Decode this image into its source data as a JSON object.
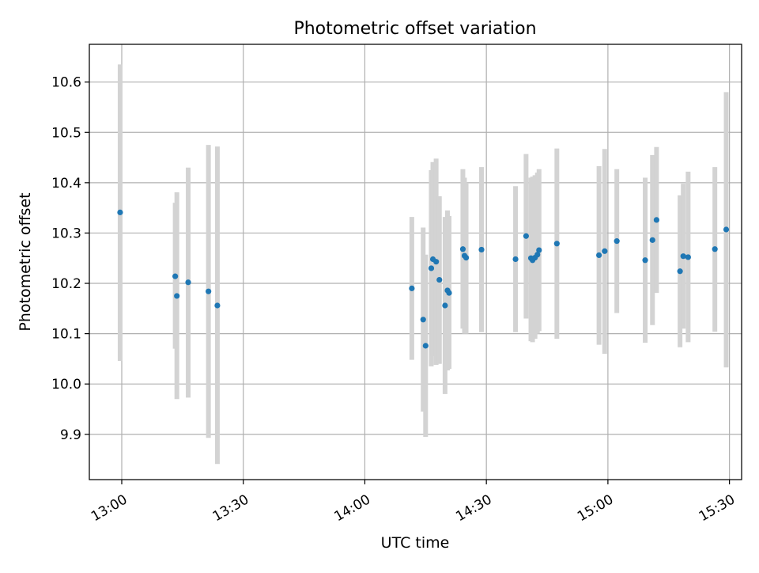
{
  "chart_data": {
    "type": "scatter",
    "title": "Photometric offset variation",
    "xlabel": "UTC time",
    "ylabel": "Photometric offset",
    "x_format": "HH:MM",
    "xlim": [
      "12:52",
      "15:33"
    ],
    "ylim": [
      9.81,
      10.675
    ],
    "x_ticks": [
      "13:00",
      "13:30",
      "14:00",
      "14:30",
      "15:00",
      "15:30"
    ],
    "y_ticks": [
      9.9,
      10.0,
      10.1,
      10.2,
      10.3,
      10.4,
      10.5,
      10.6
    ],
    "y_tick_labels": [
      "9.9",
      "10.0",
      "10.1",
      "10.2",
      "10.3",
      "10.4",
      "10.5",
      "10.6"
    ],
    "grid": true,
    "legend": "none",
    "colors": {
      "marker": "#1f77b4",
      "errorbar": "#d3d3d3",
      "grid": "#b0b0b0",
      "axes": "#000000"
    },
    "points": [
      {
        "x": "12:59:36",
        "y": 10.341,
        "ylo": 10.046,
        "yhi": 10.635
      },
      {
        "x": "13:13:12",
        "y": 10.214,
        "ylo": 10.07,
        "yhi": 10.36
      },
      {
        "x": "13:13:36",
        "y": 10.175,
        "ylo": 9.97,
        "yhi": 10.381
      },
      {
        "x": "13:16:24",
        "y": 10.202,
        "ylo": 9.973,
        "yhi": 10.43
      },
      {
        "x": "13:21:24",
        "y": 10.184,
        "ylo": 9.893,
        "yhi": 10.475
      },
      {
        "x": "13:23:36",
        "y": 10.156,
        "ylo": 9.841,
        "yhi": 10.472
      },
      {
        "x": "14:11:36",
        "y": 10.19,
        "ylo": 10.048,
        "yhi": 10.332
      },
      {
        "x": "14:14:24",
        "y": 10.128,
        "ylo": 9.945,
        "yhi": 10.311
      },
      {
        "x": "14:15:00",
        "y": 10.076,
        "ylo": 9.895,
        "yhi": 10.257
      },
      {
        "x": "14:16:24",
        "y": 10.23,
        "ylo": 10.035,
        "yhi": 10.425
      },
      {
        "x": "14:16:48",
        "y": 10.248,
        "ylo": 10.055,
        "yhi": 10.441
      },
      {
        "x": "14:17:36",
        "y": 10.243,
        "ylo": 10.038,
        "yhi": 10.448
      },
      {
        "x": "14:18:24",
        "y": 10.207,
        "ylo": 10.04,
        "yhi": 10.373
      },
      {
        "x": "14:19:48",
        "y": 10.156,
        "ylo": 9.98,
        "yhi": 10.332
      },
      {
        "x": "14:20:24",
        "y": 10.186,
        "ylo": 10.027,
        "yhi": 10.345
      },
      {
        "x": "14:20:48",
        "y": 10.181,
        "ylo": 10.03,
        "yhi": 10.334
      },
      {
        "x": "14:24:12",
        "y": 10.268,
        "ylo": 10.11,
        "yhi": 10.427
      },
      {
        "x": "14:24:36",
        "y": 10.255,
        "ylo": 10.1,
        "yhi": 10.41
      },
      {
        "x": "14:25:00",
        "y": 10.251,
        "ylo": 10.1,
        "yhi": 10.4
      },
      {
        "x": "14:28:48",
        "y": 10.267,
        "ylo": 10.103,
        "yhi": 10.431
      },
      {
        "x": "14:37:12",
        "y": 10.248,
        "ylo": 10.103,
        "yhi": 10.393
      },
      {
        "x": "14:39:48",
        "y": 10.294,
        "ylo": 10.13,
        "yhi": 10.457
      },
      {
        "x": "14:41:00",
        "y": 10.25,
        "ylo": 10.085,
        "yhi": 10.41
      },
      {
        "x": "14:41:24",
        "y": 10.246,
        "ylo": 10.083,
        "yhi": 10.412
      },
      {
        "x": "14:42:00",
        "y": 10.251,
        "ylo": 10.09,
        "yhi": 10.415
      },
      {
        "x": "14:42:36",
        "y": 10.257,
        "ylo": 10.1,
        "yhi": 10.42
      },
      {
        "x": "14:43:00",
        "y": 10.266,
        "ylo": 10.105,
        "yhi": 10.427
      },
      {
        "x": "14:47:24",
        "y": 10.279,
        "ylo": 10.09,
        "yhi": 10.468
      },
      {
        "x": "14:57:48",
        "y": 10.256,
        "ylo": 10.078,
        "yhi": 10.433
      },
      {
        "x": "14:59:12",
        "y": 10.264,
        "ylo": 10.06,
        "yhi": 10.467
      },
      {
        "x": "15:02:12",
        "y": 10.284,
        "ylo": 10.141,
        "yhi": 10.427
      },
      {
        "x": "15:09:12",
        "y": 10.246,
        "ylo": 10.082,
        "yhi": 10.41
      },
      {
        "x": "15:11:00",
        "y": 10.286,
        "ylo": 10.117,
        "yhi": 10.455
      },
      {
        "x": "15:12:00",
        "y": 10.326,
        "ylo": 10.181,
        "yhi": 10.471
      },
      {
        "x": "15:17:48",
        "y": 10.224,
        "ylo": 10.073,
        "yhi": 10.375
      },
      {
        "x": "15:18:36",
        "y": 10.254,
        "ylo": 10.11,
        "yhi": 10.398
      },
      {
        "x": "15:19:48",
        "y": 10.252,
        "ylo": 10.083,
        "yhi": 10.422
      },
      {
        "x": "15:26:24",
        "y": 10.268,
        "ylo": 10.104,
        "yhi": 10.431
      },
      {
        "x": "15:29:12",
        "y": 10.307,
        "ylo": 10.033,
        "yhi": 10.58
      }
    ]
  }
}
